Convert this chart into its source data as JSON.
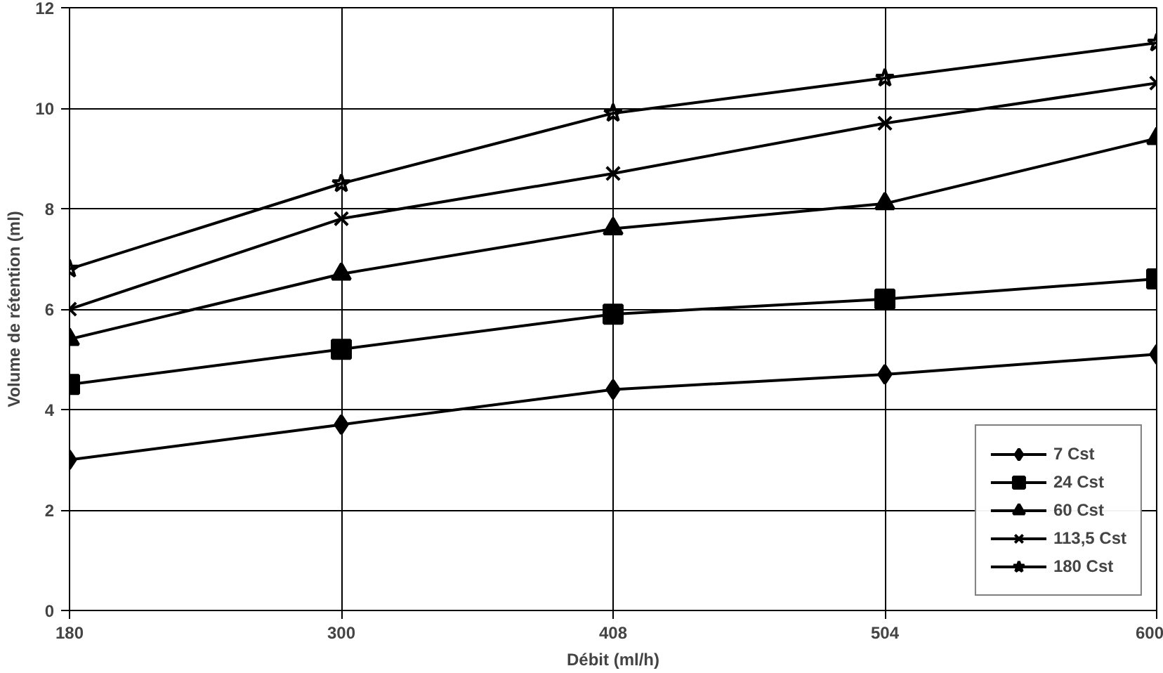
{
  "chart_data": {
    "type": "line",
    "xlabel": "Débit (ml/h)",
    "ylabel": "Volume de rétention (ml)",
    "categories": [
      "180",
      "300",
      "408",
      "504",
      "600"
    ],
    "ylim": [
      0,
      12
    ],
    "yticks": [
      0,
      2,
      4,
      6,
      8,
      10,
      12
    ],
    "grid": true,
    "legend": "bottom right",
    "line_style": "solid",
    "series": [
      {
        "name": "7 Cst",
        "color": "#000000",
        "marker": "diamond",
        "values": [
          3.0,
          3.7,
          4.4,
          4.7,
          5.1
        ]
      },
      {
        "name": "24 Cst",
        "color": "#000000",
        "marker": "square",
        "values": [
          4.5,
          5.2,
          5.9,
          6.2,
          6.6
        ]
      },
      {
        "name": "60 Cst",
        "color": "#000000",
        "marker": "triangle",
        "values": [
          5.4,
          6.7,
          7.6,
          8.1,
          9.4
        ]
      },
      {
        "name": "113,5 Cst",
        "color": "#000000",
        "marker": "cross",
        "values": [
          6.0,
          7.8,
          8.7,
          9.7,
          10.5
        ]
      },
      {
        "name": "180 Cst",
        "color": "#000000",
        "marker": "star",
        "values": [
          6.8,
          8.5,
          9.9,
          10.6,
          11.3
        ]
      }
    ]
  }
}
